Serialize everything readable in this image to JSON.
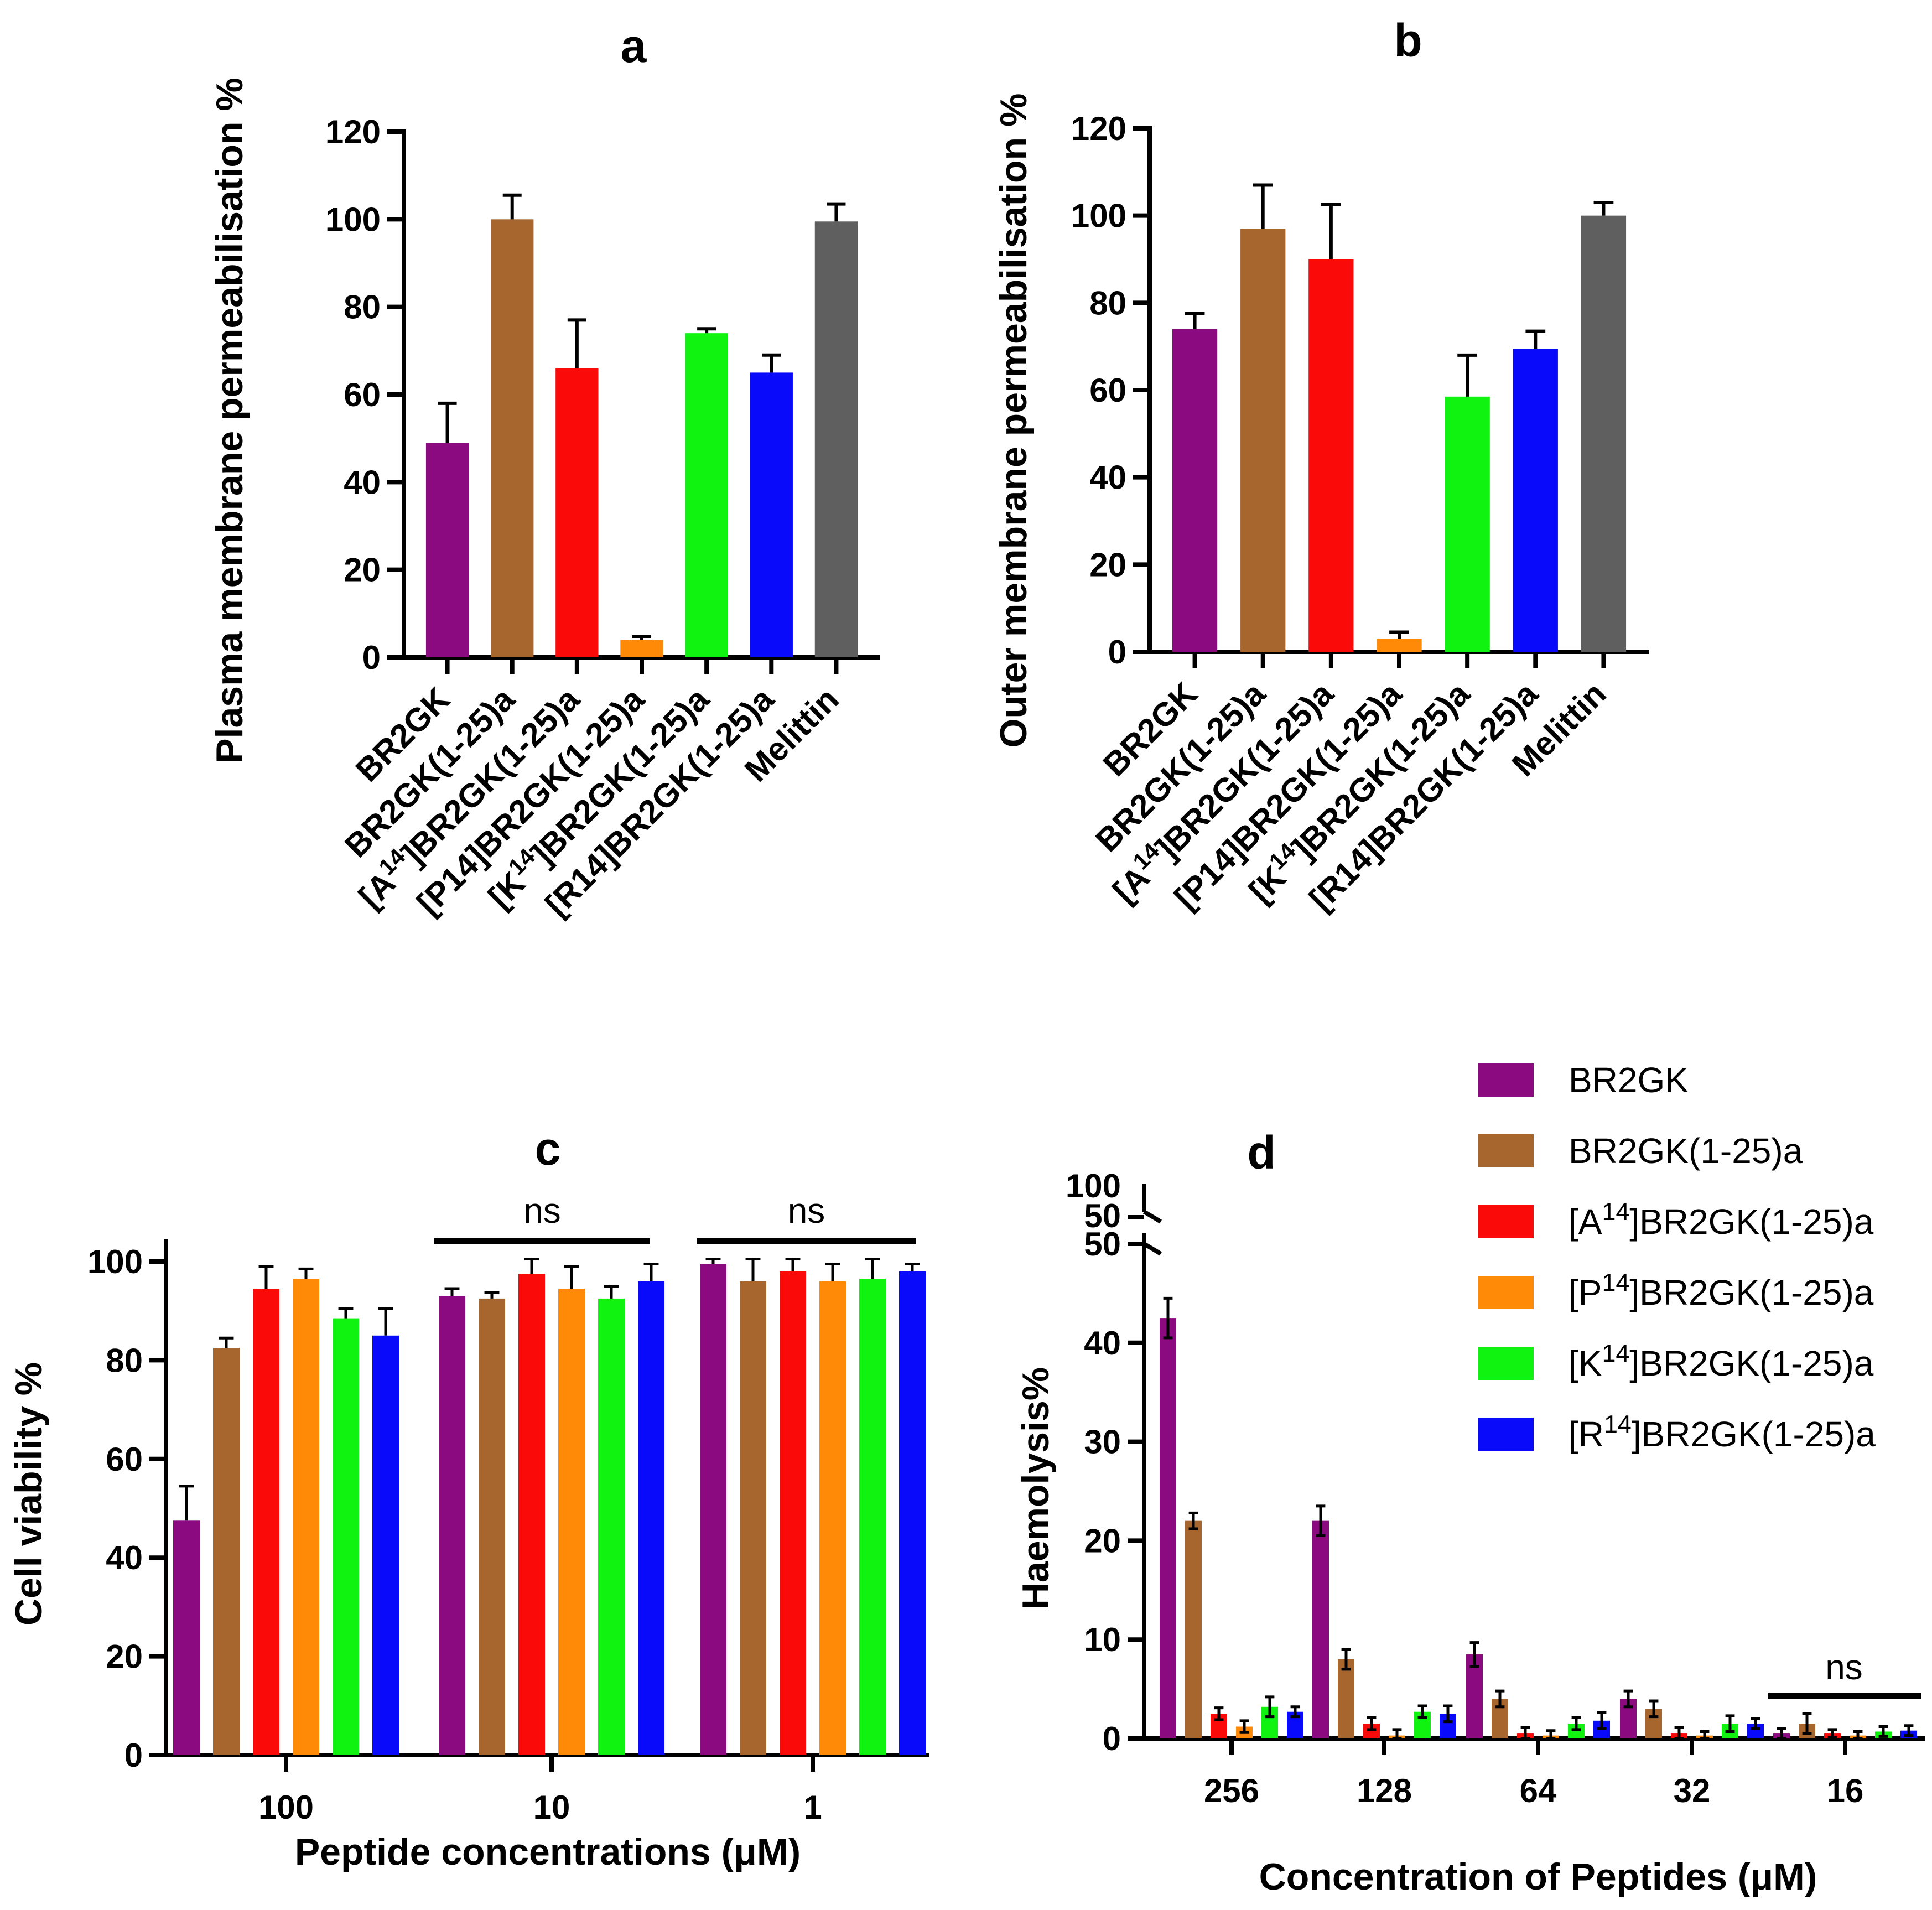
{
  "colors": {
    "BR2GK": "#8b0a80",
    "BR2GK(1-25)a": "#a8662f",
    "A14": "#fb0a0a",
    "P14": "#fe8a08",
    "K14": "#10f210",
    "R14": "#0a0afa",
    "Melittin": "#5f5f5f"
  },
  "chart_data": [
    {
      "panel": "a",
      "type": "bar",
      "title": "a",
      "ylabel": "Plasma membrane permeabilisation %",
      "xlabel": "",
      "ylim": [
        0,
        120
      ],
      "yticks": [
        "0",
        "20",
        "40",
        "60",
        "80",
        "100",
        "120"
      ],
      "categories": [
        {
          "pre": "BR2GK",
          "sup": "",
          "post": ""
        },
        {
          "pre": "BR2GK(1-25)a",
          "sup": "",
          "post": ""
        },
        {
          "pre": "[A",
          "sup": "14",
          "post": "]BR2GK(1-25)a"
        },
        {
          "pre": "[P14]BR2GK(1-25)a",
          "sup": "",
          "post": ""
        },
        {
          "pre": "[K",
          "sup": "14",
          "post": "]BR2GK(1-25)a"
        },
        {
          "pre": "[R14]BR2GK(1-25)a",
          "sup": "",
          "post": ""
        },
        {
          "pre": "Melittin",
          "sup": "",
          "post": ""
        }
      ],
      "colorKeys": [
        "BR2GK",
        "BR2GK(1-25)a",
        "A14",
        "P14",
        "K14",
        "R14",
        "Melittin"
      ],
      "values": [
        49,
        100,
        66,
        4,
        74,
        65,
        99.5
      ],
      "errors": [
        9,
        5.5,
        11,
        0.8,
        1,
        4,
        4
      ]
    },
    {
      "panel": "b",
      "type": "bar",
      "title": "b",
      "ylabel": "Outer membrane permeabilisation %",
      "xlabel": "",
      "ylim": [
        0,
        120
      ],
      "yticks": [
        "0",
        "20",
        "40",
        "60",
        "80",
        "100",
        "120"
      ],
      "categories": [
        {
          "pre": "BR2GK",
          "sup": "",
          "post": ""
        },
        {
          "pre": "BR2GK(1-25)a",
          "sup": "",
          "post": ""
        },
        {
          "pre": "[A",
          "sup": "14",
          "post": "]BR2GK(1-25)a"
        },
        {
          "pre": "[P14]BR2GK(1-25)a",
          "sup": "",
          "post": ""
        },
        {
          "pre": "[K",
          "sup": "14",
          "post": "]BR2GK(1-25)a"
        },
        {
          "pre": "[R14]BR2GK(1-25)a",
          "sup": "",
          "post": ""
        },
        {
          "pre": "Melittin",
          "sup": "",
          "post": ""
        }
      ],
      "colorKeys": [
        "BR2GK",
        "BR2GK(1-25)a",
        "A14",
        "P14",
        "K14",
        "R14",
        "Melittin"
      ],
      "values": [
        74,
        97,
        90,
        3,
        58.5,
        69.5,
        100
      ],
      "errors": [
        3.5,
        10,
        12.5,
        1.5,
        9.5,
        4,
        3
      ]
    },
    {
      "panel": "c",
      "type": "bar",
      "title": "c",
      "ylabel": "Cell viability %",
      "xlabel": "Peptide concentrations (μM)",
      "ylim": [
        0,
        100
      ],
      "yticks": [
        "0",
        "20",
        "40",
        "60",
        "80",
        "100"
      ],
      "groups": [
        "100",
        "10",
        "1"
      ],
      "annotations": [
        "ns",
        "ns"
      ],
      "series": [
        {
          "name": "BR2GK",
          "values": [
            47.5,
            93,
            99.5
          ],
          "errors": [
            7,
            1.5,
            1
          ]
        },
        {
          "name": "BR2GK(1-25)a",
          "values": [
            82.5,
            92.5,
            96
          ],
          "errors": [
            2,
            1.2,
            4.5
          ]
        },
        {
          "name": "A14",
          "values": [
            94.5,
            97.5,
            98
          ],
          "errors": [
            4.5,
            3,
            2.5
          ]
        },
        {
          "name": "P14",
          "values": [
            96.5,
            94.5,
            96
          ],
          "errors": [
            2,
            4.5,
            3.5
          ]
        },
        {
          "name": "K14",
          "values": [
            88.5,
            92.5,
            96.5
          ],
          "errors": [
            2,
            2.5,
            4
          ]
        },
        {
          "name": "R14",
          "values": [
            85,
            96,
            98
          ],
          "errors": [
            5.5,
            3.5,
            1.5
          ]
        }
      ]
    },
    {
      "panel": "d",
      "type": "bar",
      "title": "d",
      "ylabel": "Haemolysis%",
      "xlabel": "Concentration of Peptides (μM)",
      "ylim": [
        0,
        50
      ],
      "yticks": [
        "0",
        "10",
        "20",
        "30",
        "40",
        "50"
      ],
      "break_ticks": [
        "50",
        "100"
      ],
      "groups": [
        "256",
        "128",
        "64",
        "32",
        "16"
      ],
      "annotations": [
        "ns"
      ],
      "series": [
        {
          "name": "BR2GK",
          "values": [
            42.5,
            22,
            8.5,
            4,
            0.5
          ],
          "errors": [
            2,
            1.5,
            1.2,
            0.8,
            0.5
          ]
        },
        {
          "name": "BR2GK(1-25)a",
          "values": [
            22,
            8,
            4,
            3,
            1.5
          ],
          "errors": [
            0.8,
            1,
            0.8,
            0.8,
            1
          ]
        },
        {
          "name": "A14",
          "values": [
            2.5,
            1.5,
            0.5,
            0.5,
            0.5
          ],
          "errors": [
            0.6,
            0.6,
            0.6,
            0.6,
            0.4
          ]
        },
        {
          "name": "P14",
          "values": [
            1.2,
            0.3,
            0.3,
            0.3,
            0.3
          ],
          "errors": [
            0.6,
            0.6,
            0.5,
            0.4,
            0.4
          ]
        },
        {
          "name": "K14",
          "values": [
            3.2,
            2.7,
            1.5,
            1.5,
            0.7
          ],
          "errors": [
            1,
            0.6,
            0.6,
            0.8,
            0.5
          ]
        },
        {
          "name": "R14",
          "values": [
            2.7,
            2.5,
            1.8,
            1.5,
            0.8
          ],
          "errors": [
            0.5,
            0.8,
            0.8,
            0.5,
            0.5
          ]
        }
      ]
    }
  ],
  "legend": [
    {
      "key": "BR2GK",
      "pre": "BR2GK",
      "sup": "",
      "post": ""
    },
    {
      "key": "BR2GK(1-25)a",
      "pre": "BR2GK(1-25)a",
      "sup": "",
      "post": ""
    },
    {
      "key": "A14",
      "pre": "[A",
      "sup": "14",
      "post": "]BR2GK(1-25)a"
    },
    {
      "key": "P14",
      "pre": "[P",
      "sup": "14",
      "post": "]BR2GK(1-25)a"
    },
    {
      "key": "K14",
      "pre": "[K",
      "sup": "14",
      "post": "]BR2GK(1-25)a"
    },
    {
      "key": "R14",
      "pre": "[R",
      "sup": "14",
      "post": "]BR2GK(1-25)a"
    }
  ]
}
